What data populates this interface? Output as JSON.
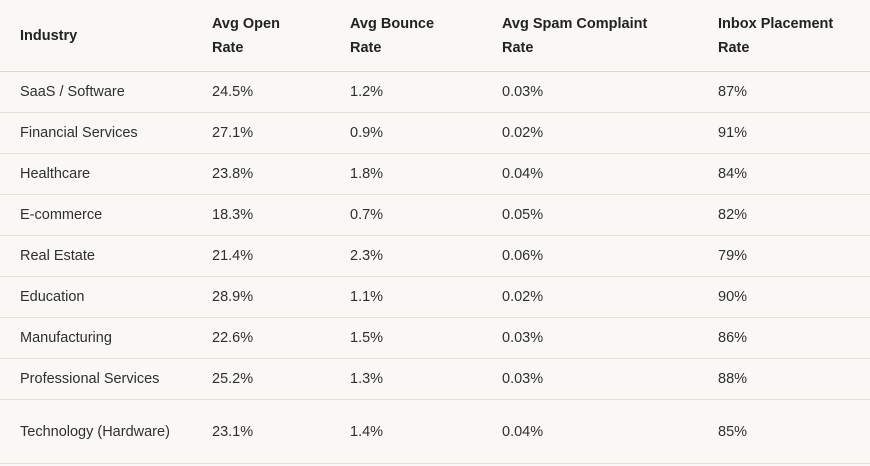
{
  "table": {
    "headers": [
      "Industry",
      "Avg Open Rate",
      "Avg Bounce Rate",
      "Avg Spam Complaint Rate",
      "Inbox Placement Rate"
    ],
    "rows": [
      [
        "SaaS / Software",
        "24.5%",
        "1.2%",
        "0.03%",
        "87%"
      ],
      [
        "Financial Services",
        "27.1%",
        "0.9%",
        "0.02%",
        "91%"
      ],
      [
        "Healthcare",
        "23.8%",
        "1.8%",
        "0.04%",
        "84%"
      ],
      [
        "E-commerce",
        "18.3%",
        "0.7%",
        "0.05%",
        "82%"
      ],
      [
        "Real Estate",
        "21.4%",
        "2.3%",
        "0.06%",
        "79%"
      ],
      [
        "Education",
        "28.9%",
        "1.1%",
        "0.02%",
        "90%"
      ],
      [
        "Manufacturing",
        "22.6%",
        "1.5%",
        "0.03%",
        "86%"
      ],
      [
        "Professional Services",
        "25.2%",
        "1.3%",
        "0.03%",
        "88%"
      ],
      [
        "Technology (Hardware)",
        "23.1%",
        "1.4%",
        "0.04%",
        "85%"
      ]
    ]
  }
}
